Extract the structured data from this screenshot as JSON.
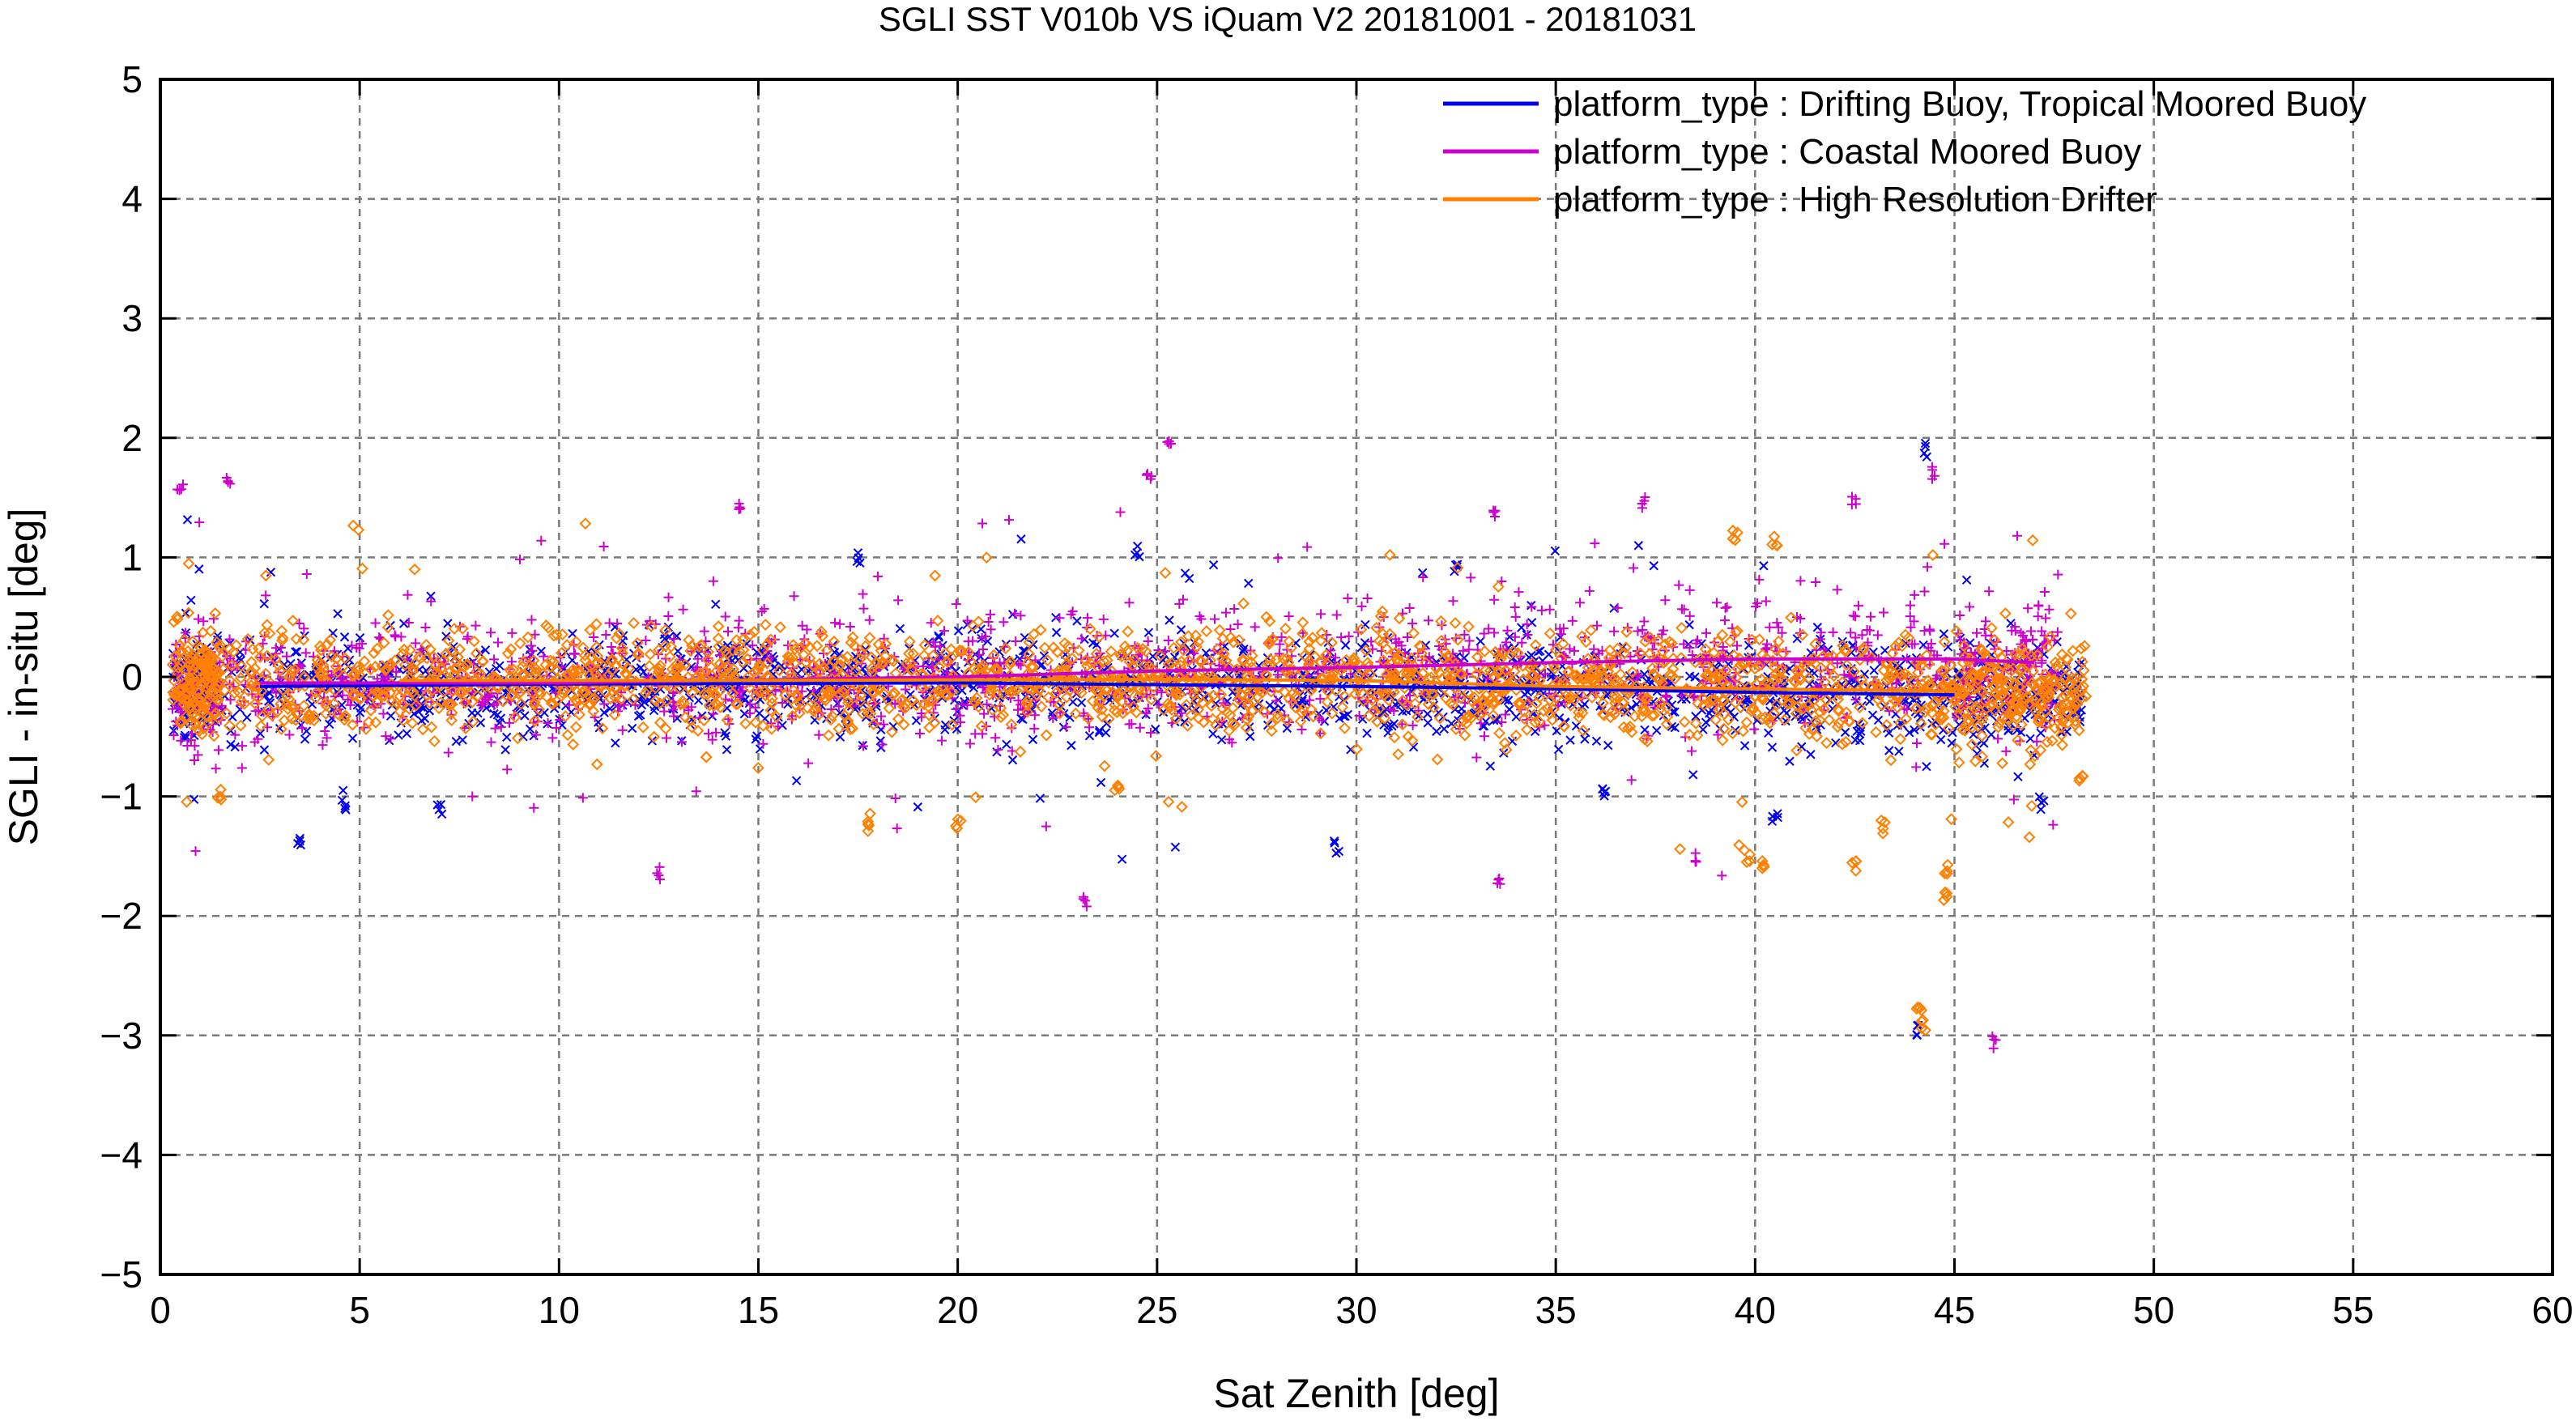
{
  "chart_data": {
    "type": "scatter",
    "title": "SGLI SST V010b VS iQuam V2 20181001 - 20181031",
    "xlabel": "Sat Zenith [deg]",
    "ylabel": "SGLI - in-situ [deg]",
    "xlim": [
      0,
      60
    ],
    "ylim": [
      -5,
      5
    ],
    "x_ticks": [
      "0",
      "5",
      "10",
      "15",
      "20",
      "25",
      "30",
      "35",
      "40",
      "45",
      "50",
      "55",
      "60"
    ],
    "y_ticks": [
      "5",
      "4",
      "3",
      "2",
      "1",
      "0",
      "-1",
      "-2",
      "-3",
      "-4",
      "-5"
    ],
    "grid": true,
    "legend_position": "top-right",
    "series": [
      {
        "name": "platform_type : Drifting Buoy, Tropical Moored Buoy",
        "color": "#0000ee",
        "marker": "x",
        "x_range": [
          0.3,
          48.2
        ],
        "spread": 0.32,
        "trend": [
          [
            2.5,
            -0.08
          ],
          [
            10,
            -0.06
          ],
          [
            20,
            -0.05
          ],
          [
            30,
            -0.08
          ],
          [
            35,
            -0.1
          ],
          [
            40,
            -0.13
          ],
          [
            45,
            -0.15
          ]
        ],
        "outliers": [
          [
            3.5,
            -1.35
          ],
          [
            4.6,
            -1.08
          ],
          [
            7,
            -1.1
          ],
          [
            17.5,
            0.98
          ],
          [
            24.5,
            1.05
          ],
          [
            29.5,
            -1.42
          ],
          [
            32.5,
            0.93
          ],
          [
            36.2,
            -0.98
          ],
          [
            40.5,
            -1.15
          ],
          [
            44.3,
            1.9
          ],
          [
            44.1,
            -2.95
          ],
          [
            47.2,
            -1.05
          ]
        ]
      },
      {
        "name": "platform_type : Coastal Moored Buoy",
        "color": "#cc00cc",
        "marker": "+",
        "x_range": [
          0.3,
          47.6
        ],
        "spread": 0.38,
        "trend": [
          [
            2.5,
            -0.05
          ],
          [
            10,
            -0.05
          ],
          [
            20,
            0.0
          ],
          [
            25,
            0.05
          ],
          [
            30,
            0.08
          ],
          [
            35,
            0.12
          ],
          [
            40,
            0.15
          ],
          [
            45,
            0.15
          ],
          [
            47,
            0.12
          ]
        ],
        "outliers": [
          [
            0.5,
            1.6
          ],
          [
            1.7,
            1.65
          ],
          [
            12.5,
            -1.65
          ],
          [
            14.5,
            1.45
          ],
          [
            23.2,
            -1.9
          ],
          [
            24.8,
            1.7
          ],
          [
            25.3,
            1.95
          ],
          [
            33.5,
            1.4
          ],
          [
            33.6,
            -1.7
          ],
          [
            37.2,
            1.45
          ],
          [
            38.5,
            -1.5
          ],
          [
            44.5,
            1.7
          ],
          [
            46,
            -3.05
          ],
          [
            42.5,
            1.5
          ]
        ]
      },
      {
        "name": "platform_type : High Resolution Drifter",
        "color": "#ff8000",
        "marker": "diamond",
        "x_range": [
          0.3,
          48.3
        ],
        "spread": 0.3,
        "trend": [
          [
            6,
            -0.03
          ],
          [
            15,
            -0.03
          ],
          [
            25,
            -0.02
          ],
          [
            30,
            -0.03
          ],
          [
            35,
            -0.08
          ],
          [
            40,
            -0.1
          ],
          [
            45,
            -0.12
          ]
        ],
        "outliers": [
          [
            1.5,
            -1.0
          ],
          [
            17.8,
            -1.25
          ],
          [
            20,
            -1.25
          ],
          [
            24,
            -0.95
          ],
          [
            39.5,
            1.2
          ],
          [
            40.5,
            1.15
          ],
          [
            39.8,
            -1.5
          ],
          [
            40.2,
            -1.6
          ],
          [
            42.5,
            -1.6
          ],
          [
            43.2,
            -1.25
          ],
          [
            44.1,
            -2.75
          ],
          [
            44.2,
            -2.9
          ],
          [
            44.8,
            -1.85
          ],
          [
            44.8,
            -1.6
          ],
          [
            48.2,
            -0.85
          ]
        ]
      }
    ]
  }
}
